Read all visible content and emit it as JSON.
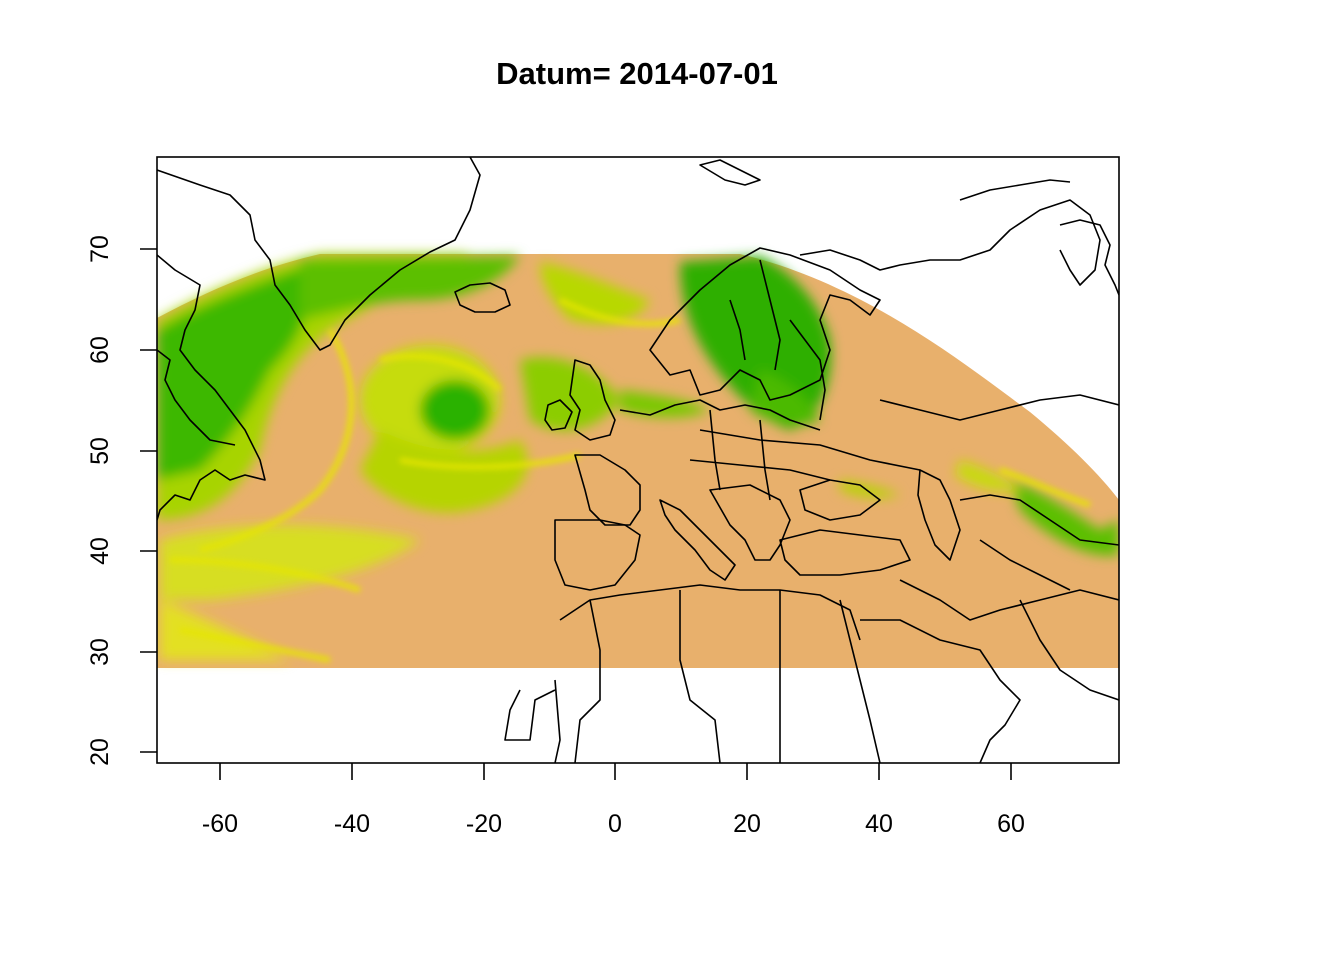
{
  "title": "Datum= 2014-07-01",
  "map": {
    "type": "raster-map",
    "x_ticks": [
      "-60",
      "-40",
      "-20",
      "0",
      "20",
      "40",
      "60"
    ],
    "y_ticks": [
      "20",
      "30",
      "40",
      "50",
      "60",
      "70"
    ],
    "x_range": [
      -70,
      76
    ],
    "y_range": [
      19,
      79
    ],
    "palette": {
      "high": "#1fae00",
      "mid_green": "#7cc800",
      "yellow": "#e6e600",
      "low": "#e8b06c",
      "lowest": "#eba58a"
    },
    "raster_extent_lat": [
      28.5,
      70
    ],
    "border_color": "#000000"
  }
}
